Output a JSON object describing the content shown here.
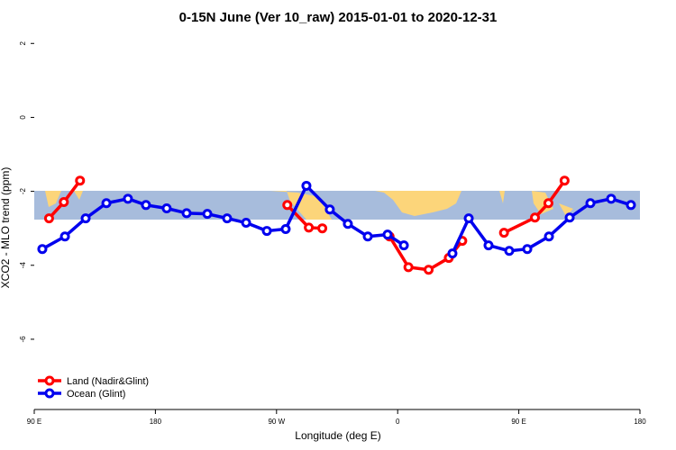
{
  "chart_data": {
    "type": "line",
    "title": "0-15N June (Ver 10_raw)   2015-01-01 to 2020-12-31",
    "x_label": "Longitude (deg E)",
    "y_label": "XCO2 - MLO trend (ppm)",
    "xlim": [
      90,
      540
    ],
    "ylim": [
      -7.9,
      2.25
    ],
    "xticks": [
      {
        "value": 90,
        "label": "90 E"
      },
      {
        "value": 180,
        "label": "180"
      },
      {
        "value": 270,
        "label": "90 W"
      },
      {
        "value": 360,
        "label": "0"
      },
      {
        "value": 450,
        "label": "90 E"
      },
      {
        "value": 540,
        "label": "180"
      }
    ],
    "yticks": [
      2,
      0,
      -2,
      -4,
      -6
    ],
    "legend": "bottomleft",
    "series": [
      {
        "name": "Land (Nadir&Glint)",
        "color": "#ff0000",
        "x": [
          101,
          112,
          124,
          null,
          278,
          294,
          304,
          null,
          354,
          368,
          383,
          398,
          408,
          null,
          439,
          462,
          472,
          484
        ],
        "values": [
          -2.73,
          -2.29,
          -1.71,
          null,
          -2.37,
          -2.98,
          -3.0,
          null,
          -3.22,
          -4.05,
          -4.12,
          -3.8,
          -3.34,
          null,
          -3.12,
          -2.71,
          -2.32,
          -1.71
        ]
      },
      {
        "name": "Ocean (Glint)",
        "color": "#0000ee",
        "x": [
          96,
          112.8,
          128.2,
          143.6,
          159.6,
          173,
          188.4,
          203.2,
          218.6,
          233.3,
          247.4,
          262.8,
          276.8,
          292.2,
          309.6,
          323,
          337.8,
          352.5,
          364.6,
          null,
          400.7,
          412.8,
          427.5,
          442.9,
          456.3,
          472.4,
          487.8,
          503.2,
          518.6,
          533.3
        ],
        "values": [
          -3.56,
          -3.22,
          -2.73,
          -2.32,
          -2.2,
          -2.37,
          -2.46,
          -2.59,
          -2.61,
          -2.73,
          -2.85,
          -3.07,
          -3.02,
          -1.85,
          -2.49,
          -2.88,
          -3.22,
          -3.17,
          -3.46,
          null,
          -3.68,
          -2.73,
          -3.46,
          -3.61,
          -3.56,
          -3.22,
          -2.71,
          -2.32,
          -2.2,
          -2.37
        ]
      }
    ]
  }
}
